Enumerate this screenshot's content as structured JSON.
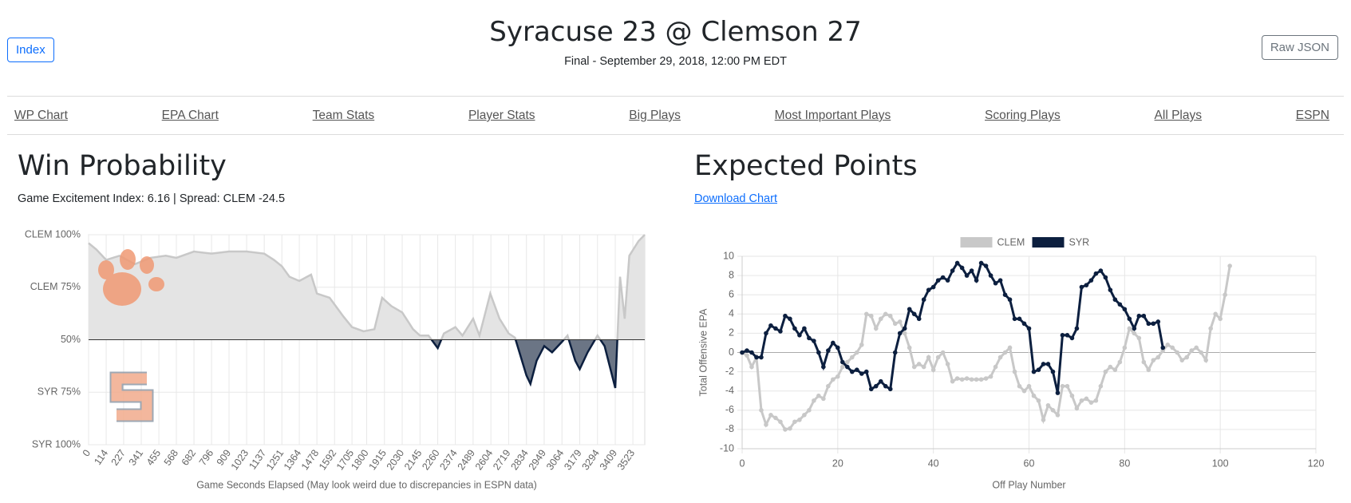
{
  "header": {
    "title": "Syracuse 23 @ Clemson 27",
    "subtitle": "Final - September 29, 2018, 12:00 PM EDT",
    "left_button": "Index",
    "right_button": "Raw JSON"
  },
  "nav": [
    "WP Chart",
    "EPA Chart",
    "Team Stats",
    "Player Stats",
    "Big Plays",
    "Most Important Plays",
    "Scoring Plays",
    "All Plays",
    "ESPN"
  ],
  "chart_data": [
    {
      "type": "area",
      "title": "Win Probability",
      "subtitle": "Game Excitement Index: 6.16 | Spread: CLEM -24.5",
      "x_label": "Game Seconds Elapsed (May look weird due to discrepancies in ESPN data)",
      "x": [
        0,
        50,
        114,
        200,
        300,
        400,
        500,
        568,
        682,
        796,
        909,
        1023,
        1137,
        1200,
        1251,
        1300,
        1364,
        1440,
        1478,
        1560,
        1650,
        1705,
        1780,
        1850,
        1900,
        1960,
        2030,
        2100,
        2145,
        2200,
        2260,
        2300,
        2374,
        2420,
        2489,
        2530,
        2600,
        2660,
        2719,
        2760,
        2834,
        2860,
        2900,
        2949,
        3000,
        3064,
        3100,
        3150,
        3179,
        3230,
        3294,
        3340,
        3409,
        3440,
        3470,
        3500,
        3560,
        3600
      ],
      "values": [
        96,
        93,
        88,
        90,
        86,
        89,
        90,
        89,
        92,
        91,
        92,
        92,
        91,
        88,
        85,
        80,
        78,
        81,
        72,
        70,
        61,
        56,
        54,
        55,
        70,
        66,
        63,
        55,
        52,
        52,
        46,
        53,
        56,
        52,
        60,
        52,
        72,
        60,
        53,
        51,
        33,
        29,
        40,
        47,
        44,
        49,
        52,
        40,
        36,
        44,
        52,
        47,
        27,
        80,
        60,
        90,
        97,
        100
      ],
      "baseline": 50,
      "xlim": [
        0,
        3600
      ],
      "xticks": [
        0,
        114,
        227,
        341,
        455,
        568,
        682,
        796,
        909,
        1023,
        1137,
        1251,
        1364,
        1478,
        1592,
        1705,
        1800,
        1915,
        2030,
        2145,
        2260,
        2374,
        2489,
        2604,
        2719,
        2834,
        2949,
        3064,
        3179,
        3294,
        3409,
        3523
      ],
      "ylim": [
        0,
        100
      ],
      "yticks": [
        {
          "value": 100,
          "label": "CLEM 100%"
        },
        {
          "value": 75,
          "label": "CLEM 75%"
        },
        {
          "value": 50,
          "label": "50%"
        },
        {
          "value": 25,
          "label": "SYR 75%"
        },
        {
          "value": 0,
          "label": "SYR 100%"
        }
      ],
      "grid": true,
      "line_color_above": "#c8c8c8",
      "fill_color_above": "#e4e4e4",
      "line_color_below": "#0c1f3f",
      "fill_color_below": "#6b7585"
    },
    {
      "type": "line",
      "title": "Expected Points",
      "link": "Download Chart",
      "x_label": "Off Play Number",
      "y_label": "Total Offensive EPA",
      "legend": "top",
      "grid": true,
      "xlim": [
        0,
        120
      ],
      "xticks": [
        0,
        20,
        40,
        60,
        80,
        100,
        120
      ],
      "ylim": [
        -10,
        10
      ],
      "yticks": [
        10,
        8,
        6,
        4,
        2,
        0,
        -2,
        -4,
        -6,
        -8,
        -10
      ],
      "series": [
        {
          "name": "CLEM",
          "color": "#c8c8c8",
          "x": [
            0,
            1,
            2,
            3,
            4,
            5,
            6,
            7,
            8,
            9,
            10,
            11,
            12,
            13,
            14,
            15,
            16,
            17,
            18,
            19,
            20,
            21,
            22,
            23,
            24,
            25,
            26,
            27,
            28,
            29,
            30,
            31,
            32,
            33,
            34,
            35,
            36,
            37,
            38,
            39,
            40,
            41,
            42,
            43,
            44,
            45,
            46,
            47,
            48,
            49,
            50,
            51,
            52,
            53,
            54,
            55,
            56,
            57,
            58,
            59,
            60,
            61,
            62,
            63,
            64,
            65,
            66,
            67,
            68,
            69,
            70,
            71,
            72,
            73,
            74,
            75,
            76,
            77,
            78,
            79,
            80,
            81,
            82,
            83,
            84,
            85,
            86,
            87,
            88,
            89,
            90,
            91,
            92,
            93,
            94,
            95,
            96,
            97,
            98,
            99,
            100,
            101,
            102
          ],
          "values": [
            0,
            -0.3,
            -1.5,
            -0.5,
            -6,
            -7.5,
            -6.5,
            -6.8,
            -7.2,
            -8,
            -7.9,
            -7.2,
            -7,
            -6.5,
            -6,
            -5,
            -4.5,
            -4.8,
            -3.5,
            -2.8,
            -2.5,
            -1.5,
            -1,
            -0.5,
            0,
            0.8,
            4,
            3.8,
            2.5,
            3.5,
            4,
            3.8,
            3,
            3.2,
            2,
            0.5,
            -1.5,
            -1.2,
            -1.5,
            -0.5,
            -1.8,
            -0.5,
            0,
            -1.2,
            -3,
            -2.7,
            -2.8,
            -2.7,
            -2.8,
            -2.8,
            -2.8,
            -2.7,
            -2.5,
            -1.5,
            -0.5,
            0,
            0.5,
            -2,
            -3.5,
            -4,
            -3.5,
            -4.5,
            -5,
            -7,
            -5.5,
            -6,
            -6.5,
            -3.5,
            -3.5,
            -4.5,
            -5.8,
            -5,
            -4.8,
            -5.2,
            -5,
            -3.5,
            -2,
            -1.5,
            -1.8,
            -1,
            0.5,
            2.5,
            2,
            1.5,
            -1,
            -1.8,
            -0.8,
            -0.5,
            0.2,
            0.8,
            0.5,
            0,
            -0.8,
            -0.5,
            0.2,
            0.5,
            0,
            -0.8,
            2.5,
            4,
            3.5,
            6,
            9
          ]
        },
        {
          "name": "SYR",
          "color": "#0c1f3f",
          "x": [
            0,
            1,
            2,
            3,
            4,
            5,
            6,
            7,
            8,
            9,
            10,
            11,
            12,
            13,
            14,
            15,
            16,
            17,
            18,
            19,
            20,
            21,
            22,
            23,
            24,
            25,
            26,
            27,
            28,
            29,
            30,
            31,
            32,
            33,
            34,
            35,
            36,
            37,
            38,
            39,
            40,
            41,
            42,
            43,
            44,
            45,
            46,
            47,
            48,
            49,
            50,
            51,
            52,
            53,
            54,
            55,
            56,
            57,
            58,
            59,
            60,
            61,
            62,
            63,
            64,
            65,
            66,
            67,
            68,
            69,
            70,
            71,
            72,
            73,
            74,
            75,
            76,
            77,
            78,
            79,
            80,
            81,
            82,
            83,
            84,
            85,
            86,
            87,
            88
          ],
          "values": [
            0,
            0.2,
            0,
            -0.5,
            -0.5,
            2,
            2.8,
            2.5,
            2.2,
            3.8,
            3.5,
            2.5,
            1.8,
            2.5,
            1.5,
            1.2,
            0,
            -1.5,
            0.2,
            1,
            0.5,
            -1,
            -1.5,
            -2,
            -1.8,
            -2.2,
            -2,
            -3.8,
            -3.5,
            -3,
            -3.5,
            -3.8,
            0,
            2,
            2.5,
            4.5,
            4,
            3.5,
            5.5,
            6.5,
            6.8,
            7.5,
            7.8,
            7.5,
            8.5,
            9.3,
            8.8,
            8,
            8.5,
            7.5,
            9.3,
            9,
            8,
            7.2,
            7.5,
            6,
            5.5,
            3.5,
            3.5,
            3,
            2.5,
            -2,
            -1.8,
            -1.2,
            -1.2,
            -2,
            -4.2,
            1.8,
            1.8,
            1.5,
            2.5,
            6.8,
            7,
            7.5,
            8.2,
            8.5,
            7.8,
            6.5,
            5.5,
            5,
            4.5,
            3.5,
            2.5,
            3.8,
            3.8,
            3,
            3,
            3.2,
            0.5
          ]
        }
      ]
    }
  ]
}
